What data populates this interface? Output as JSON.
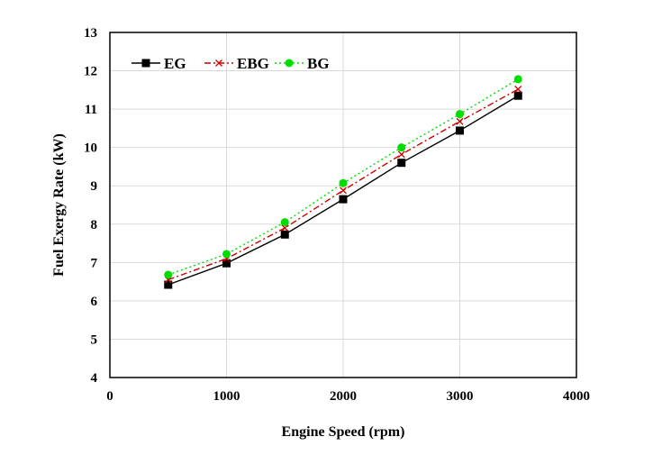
{
  "chart_data": {
    "type": "line",
    "xlabel": "Engine Speed (rpm)",
    "ylabel": "Fuel Exergy Rate  (kW)",
    "xlim": [
      0,
      4000
    ],
    "ylim": [
      4,
      13
    ],
    "xticks": [
      0,
      1000,
      2000,
      3000,
      4000
    ],
    "yticks": [
      4,
      5,
      6,
      7,
      8,
      9,
      10,
      11,
      12,
      13
    ],
    "grid": true,
    "legend_position": "top-left",
    "x": [
      500,
      1000,
      1500,
      2000,
      2500,
      3000,
      3500
    ],
    "series": [
      {
        "name": "EG",
        "values": [
          6.42,
          6.98,
          7.73,
          8.65,
          9.6,
          10.44,
          11.35
        ],
        "color": "#000000",
        "marker": "square",
        "dash": "solid"
      },
      {
        "name": "EBG",
        "values": [
          6.55,
          7.1,
          7.9,
          8.88,
          9.82,
          10.68,
          11.52
        ],
        "color": "#cc0000",
        "marker": "x",
        "dash": "dashdot"
      },
      {
        "name": "BG",
        "values": [
          6.68,
          7.22,
          8.05,
          9.07,
          10.0,
          10.87,
          11.78
        ],
        "color": "#00dd00",
        "marker": "circle",
        "dash": "dotted"
      }
    ]
  }
}
